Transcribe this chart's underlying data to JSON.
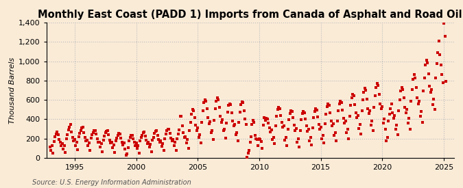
{
  "title": "Monthly East Coast (PADD 1) Imports from Canada of Asphalt and Road Oil",
  "ylabel": "Thousand Barrels",
  "source_text": "Source: U.S. Energy Information Administration",
  "background_color": "#faebd7",
  "plot_bg_color": "#faebd7",
  "marker_color": "#cc0000",
  "marker": "s",
  "markersize": 2.8,
  "ylim": [
    0,
    1400
  ],
  "yticks": [
    0,
    200,
    400,
    600,
    800,
    1000,
    1200,
    1400
  ],
  "xlim_start": 1992.7,
  "xlim_end": 2025.8,
  "xticks": [
    1995,
    2000,
    2005,
    2010,
    2015,
    2020,
    2025
  ],
  "grid_color": "#bbbbbb",
  "grid_style": "-.",
  "title_fontsize": 10.5,
  "label_fontsize": 8,
  "tick_fontsize": 8,
  "source_fontsize": 7,
  "data_points": [
    [
      1993.0,
      110
    ],
    [
      1993.083,
      75
    ],
    [
      1993.167,
      130
    ],
    [
      1993.25,
      50
    ],
    [
      1993.333,
      170
    ],
    [
      1993.417,
      220
    ],
    [
      1993.5,
      250
    ],
    [
      1993.583,
      270
    ],
    [
      1993.667,
      240
    ],
    [
      1993.75,
      190
    ],
    [
      1993.833,
      160
    ],
    [
      1993.917,
      130
    ],
    [
      1994.0,
      145
    ],
    [
      1994.083,
      95
    ],
    [
      1994.167,
      130
    ],
    [
      1994.25,
      60
    ],
    [
      1994.333,
      195
    ],
    [
      1994.417,
      240
    ],
    [
      1994.5,
      290
    ],
    [
      1994.583,
      320
    ],
    [
      1994.667,
      350
    ],
    [
      1994.75,
      270
    ],
    [
      1994.833,
      210
    ],
    [
      1994.917,
      180
    ],
    [
      1995.0,
      190
    ],
    [
      1995.083,
      130
    ],
    [
      1995.167,
      160
    ],
    [
      1995.25,
      85
    ],
    [
      1995.333,
      220
    ],
    [
      1995.417,
      255
    ],
    [
      1995.5,
      285
    ],
    [
      1995.583,
      310
    ],
    [
      1995.667,
      315
    ],
    [
      1995.75,
      265
    ],
    [
      1995.833,
      210
    ],
    [
      1995.917,
      175
    ],
    [
      1996.0,
      185
    ],
    [
      1996.083,
      125
    ],
    [
      1996.167,
      155
    ],
    [
      1996.25,
      75
    ],
    [
      1996.333,
      205
    ],
    [
      1996.417,
      240
    ],
    [
      1996.5,
      265
    ],
    [
      1996.583,
      280
    ],
    [
      1996.667,
      285
    ],
    [
      1996.75,
      245
    ],
    [
      1996.833,
      195
    ],
    [
      1996.917,
      160
    ],
    [
      1997.0,
      165
    ],
    [
      1997.083,
      110
    ],
    [
      1997.167,
      145
    ],
    [
      1997.25,
      65
    ],
    [
      1997.333,
      185
    ],
    [
      1997.417,
      225
    ],
    [
      1997.5,
      260
    ],
    [
      1997.583,
      275
    ],
    [
      1997.667,
      280
    ],
    [
      1997.75,
      240
    ],
    [
      1997.833,
      185
    ],
    [
      1997.917,
      155
    ],
    [
      1998.0,
      160
    ],
    [
      1998.083,
      105
    ],
    [
      1998.167,
      135
    ],
    [
      1998.25,
      55
    ],
    [
      1998.333,
      175
    ],
    [
      1998.417,
      205
    ],
    [
      1998.5,
      235
    ],
    [
      1998.583,
      255
    ],
    [
      1998.667,
      245
    ],
    [
      1998.75,
      205
    ],
    [
      1998.833,
      165
    ],
    [
      1998.917,
      135
    ],
    [
      1999.0,
      155
    ],
    [
      1999.083,
      95
    ],
    [
      1999.167,
      25
    ],
    [
      1999.25,
      40
    ],
    [
      1999.333,
      105
    ],
    [
      1999.417,
      175
    ],
    [
      1999.5,
      210
    ],
    [
      1999.583,
      235
    ],
    [
      1999.667,
      235
    ],
    [
      1999.75,
      195
    ],
    [
      1999.833,
      165
    ],
    [
      1999.917,
      130
    ],
    [
      2000.0,
      155
    ],
    [
      2000.083,
      100
    ],
    [
      2000.167,
      130
    ],
    [
      2000.25,
      50
    ],
    [
      2000.333,
      175
    ],
    [
      2000.417,
      210
    ],
    [
      2000.5,
      235
    ],
    [
      2000.583,
      265
    ],
    [
      2000.667,
      270
    ],
    [
      2000.75,
      225
    ],
    [
      2000.833,
      185
    ],
    [
      2000.917,
      150
    ],
    [
      2001.0,
      165
    ],
    [
      2001.083,
      110
    ],
    [
      2001.167,
      140
    ],
    [
      2001.25,
      65
    ],
    [
      2001.333,
      185
    ],
    [
      2001.417,
      215
    ],
    [
      2001.5,
      255
    ],
    [
      2001.583,
      275
    ],
    [
      2001.667,
      280
    ],
    [
      2001.75,
      235
    ],
    [
      2001.833,
      190
    ],
    [
      2001.917,
      160
    ],
    [
      2002.0,
      175
    ],
    [
      2002.083,
      120
    ],
    [
      2002.167,
      150
    ],
    [
      2002.25,
      75
    ],
    [
      2002.333,
      200
    ],
    [
      2002.417,
      250
    ],
    [
      2002.5,
      280
    ],
    [
      2002.583,
      295
    ],
    [
      2002.667,
      300
    ],
    [
      2002.75,
      255
    ],
    [
      2002.833,
      205
    ],
    [
      2002.917,
      175
    ],
    [
      2003.0,
      190
    ],
    [
      2003.083,
      130
    ],
    [
      2003.167,
      160
    ],
    [
      2003.25,
      80
    ],
    [
      2003.333,
      200
    ],
    [
      2003.417,
      250
    ],
    [
      2003.5,
      290
    ],
    [
      2003.583,
      430
    ],
    [
      2003.667,
      430
    ],
    [
      2003.75,
      330
    ],
    [
      2003.833,
      265
    ],
    [
      2003.917,
      210
    ],
    [
      2004.0,
      220
    ],
    [
      2004.083,
      155
    ],
    [
      2004.167,
      190
    ],
    [
      2004.25,
      100
    ],
    [
      2004.333,
      280
    ],
    [
      2004.417,
      370
    ],
    [
      2004.5,
      455
    ],
    [
      2004.583,
      500
    ],
    [
      2004.667,
      485
    ],
    [
      2004.75,
      415
    ],
    [
      2004.833,
      340
    ],
    [
      2004.917,
      285
    ],
    [
      2005.0,
      310
    ],
    [
      2005.083,
      215
    ],
    [
      2005.167,
      240
    ],
    [
      2005.25,
      155
    ],
    [
      2005.333,
      370
    ],
    [
      2005.417,
      490
    ],
    [
      2005.5,
      570
    ],
    [
      2005.583,
      600
    ],
    [
      2005.667,
      590
    ],
    [
      2005.75,
      510
    ],
    [
      2005.833,
      420
    ],
    [
      2005.917,
      355
    ],
    [
      2006.0,
      375
    ],
    [
      2006.083,
      265
    ],
    [
      2006.167,
      280
    ],
    [
      2006.25,
      190
    ],
    [
      2006.333,
      390
    ],
    [
      2006.417,
      510
    ],
    [
      2006.5,
      590
    ],
    [
      2006.583,
      620
    ],
    [
      2006.667,
      600
    ],
    [
      2006.75,
      520
    ],
    [
      2006.833,
      430
    ],
    [
      2006.917,
      370
    ],
    [
      2007.0,
      395
    ],
    [
      2007.083,
      280
    ],
    [
      2007.167,
      300
    ],
    [
      2007.25,
      205
    ],
    [
      2007.333,
      360
    ],
    [
      2007.417,
      475
    ],
    [
      2007.5,
      545
    ],
    [
      2007.583,
      560
    ],
    [
      2007.667,
      550
    ],
    [
      2007.75,
      470
    ],
    [
      2007.833,
      380
    ],
    [
      2007.917,
      330
    ],
    [
      2008.0,
      350
    ],
    [
      2008.083,
      240
    ],
    [
      2008.167,
      265
    ],
    [
      2008.25,
      175
    ],
    [
      2008.333,
      365
    ],
    [
      2008.417,
      475
    ],
    [
      2008.5,
      555
    ],
    [
      2008.583,
      580
    ],
    [
      2008.667,
      570
    ],
    [
      2008.75,
      490
    ],
    [
      2008.833,
      400
    ],
    [
      2008.917,
      350
    ],
    [
      2009.0,
      10
    ],
    [
      2009.083,
      50
    ],
    [
      2009.167,
      80
    ],
    [
      2009.25,
      160
    ],
    [
      2009.333,
      220
    ],
    [
      2009.417,
      350
    ],
    [
      2009.5,
      390
    ],
    [
      2009.583,
      370
    ],
    [
      2009.667,
      230
    ],
    [
      2009.75,
      200
    ],
    [
      2009.833,
      190
    ],
    [
      2009.917,
      130
    ],
    [
      2010.0,
      200
    ],
    [
      2010.083,
      190
    ],
    [
      2010.167,
      170
    ],
    [
      2010.25,
      100
    ],
    [
      2010.333,
      340
    ],
    [
      2010.417,
      420
    ],
    [
      2010.5,
      390
    ],
    [
      2010.583,
      410
    ],
    [
      2010.667,
      400
    ],
    [
      2010.75,
      360
    ],
    [
      2010.833,
      310
    ],
    [
      2010.917,
      270
    ],
    [
      2011.0,
      290
    ],
    [
      2011.083,
      190
    ],
    [
      2011.167,
      210
    ],
    [
      2011.25,
      145
    ],
    [
      2011.333,
      330
    ],
    [
      2011.417,
      430
    ],
    [
      2011.5,
      500
    ],
    [
      2011.583,
      520
    ],
    [
      2011.667,
      510
    ],
    [
      2011.75,
      440
    ],
    [
      2011.833,
      365
    ],
    [
      2011.917,
      315
    ],
    [
      2012.0,
      335
    ],
    [
      2012.083,
      185
    ],
    [
      2012.167,
      215
    ],
    [
      2012.25,
      130
    ],
    [
      2012.333,
      295
    ],
    [
      2012.417,
      395
    ],
    [
      2012.5,
      460
    ],
    [
      2012.583,
      490
    ],
    [
      2012.667,
      480
    ],
    [
      2012.75,
      415
    ],
    [
      2012.833,
      340
    ],
    [
      2012.917,
      285
    ],
    [
      2013.0,
      305
    ],
    [
      2013.083,
      160
    ],
    [
      2013.167,
      195
    ],
    [
      2013.25,
      115
    ],
    [
      2013.333,
      285
    ],
    [
      2013.417,
      395
    ],
    [
      2013.5,
      460
    ],
    [
      2013.583,
      480
    ],
    [
      2013.667,
      470
    ],
    [
      2013.75,
      405
    ],
    [
      2013.833,
      330
    ],
    [
      2013.917,
      275
    ],
    [
      2014.0,
      295
    ],
    [
      2014.083,
      175
    ],
    [
      2014.167,
      210
    ],
    [
      2014.25,
      135
    ],
    [
      2014.333,
      310
    ],
    [
      2014.417,
      415
    ],
    [
      2014.5,
      480
    ],
    [
      2014.583,
      510
    ],
    [
      2014.667,
      495
    ],
    [
      2014.75,
      425
    ],
    [
      2014.833,
      350
    ],
    [
      2014.917,
      295
    ],
    [
      2015.0,
      315
    ],
    [
      2015.083,
      195
    ],
    [
      2015.167,
      235
    ],
    [
      2015.25,
      155
    ],
    [
      2015.333,
      355
    ],
    [
      2015.417,
      455
    ],
    [
      2015.5,
      530
    ],
    [
      2015.583,
      560
    ],
    [
      2015.667,
      545
    ],
    [
      2015.75,
      465
    ],
    [
      2015.833,
      385
    ],
    [
      2015.917,
      335
    ],
    [
      2016.0,
      355
    ],
    [
      2016.083,
      235
    ],
    [
      2016.167,
      265
    ],
    [
      2016.25,
      175
    ],
    [
      2016.333,
      385
    ],
    [
      2016.417,
      485
    ],
    [
      2016.5,
      560
    ],
    [
      2016.583,
      590
    ],
    [
      2016.667,
      575
    ],
    [
      2016.75,
      495
    ],
    [
      2016.833,
      410
    ],
    [
      2016.917,
      360
    ],
    [
      2017.0,
      385
    ],
    [
      2017.083,
      260
    ],
    [
      2017.167,
      295
    ],
    [
      2017.25,
      195
    ],
    [
      2017.333,
      430
    ],
    [
      2017.417,
      545
    ],
    [
      2017.5,
      625
    ],
    [
      2017.583,
      660
    ],
    [
      2017.667,
      645
    ],
    [
      2017.75,
      555
    ],
    [
      2017.833,
      465
    ],
    [
      2017.917,
      415
    ],
    [
      2018.0,
      440
    ],
    [
      2018.083,
      305
    ],
    [
      2018.167,
      345
    ],
    [
      2018.25,
      245
    ],
    [
      2018.333,
      485
    ],
    [
      2018.417,
      600
    ],
    [
      2018.5,
      680
    ],
    [
      2018.583,
      720
    ],
    [
      2018.667,
      700
    ],
    [
      2018.75,
      610
    ],
    [
      2018.833,
      510
    ],
    [
      2018.917,
      460
    ],
    [
      2019.0,
      490
    ],
    [
      2019.083,
      340
    ],
    [
      2019.167,
      380
    ],
    [
      2019.25,
      280
    ],
    [
      2019.333,
      520
    ],
    [
      2019.417,
      640
    ],
    [
      2019.5,
      730
    ],
    [
      2019.583,
      770
    ],
    [
      2019.667,
      750
    ],
    [
      2019.75,
      660
    ],
    [
      2019.833,
      560
    ],
    [
      2019.917,
      510
    ],
    [
      2020.0,
      530
    ],
    [
      2020.083,
      360
    ],
    [
      2020.167,
      400
    ],
    [
      2020.25,
      300
    ],
    [
      2020.333,
      175
    ],
    [
      2020.417,
      210
    ],
    [
      2020.5,
      385
    ],
    [
      2020.583,
      450
    ],
    [
      2020.667,
      510
    ],
    [
      2020.75,
      560
    ],
    [
      2020.833,
      470
    ],
    [
      2020.917,
      410
    ],
    [
      2021.0,
      440
    ],
    [
      2021.083,
      300
    ],
    [
      2021.167,
      340
    ],
    [
      2021.25,
      240
    ],
    [
      2021.333,
      490
    ],
    [
      2021.417,
      600
    ],
    [
      2021.5,
      690
    ],
    [
      2021.583,
      730
    ],
    [
      2021.667,
      710
    ],
    [
      2021.75,
      620
    ],
    [
      2021.833,
      520
    ],
    [
      2021.917,
      470
    ],
    [
      2022.0,
      500
    ],
    [
      2022.083,
      360
    ],
    [
      2022.167,
      410
    ],
    [
      2022.25,
      300
    ],
    [
      2022.333,
      590
    ],
    [
      2022.417,
      710
    ],
    [
      2022.5,
      810
    ],
    [
      2022.583,
      860
    ],
    [
      2022.667,
      830
    ],
    [
      2022.75,
      730
    ],
    [
      2022.833,
      620
    ],
    [
      2022.917,
      560
    ],
    [
      2023.0,
      590
    ],
    [
      2023.083,
      430
    ],
    [
      2023.167,
      480
    ],
    [
      2023.25,
      370
    ],
    [
      2023.333,
      690
    ],
    [
      2023.417,
      830
    ],
    [
      2023.5,
      960
    ],
    [
      2023.583,
      1010
    ],
    [
      2023.667,
      980
    ],
    [
      2023.75,
      870
    ],
    [
      2023.833,
      740
    ],
    [
      2023.917,
      680
    ],
    [
      2024.0,
      710
    ],
    [
      2024.083,
      555
    ],
    [
      2024.167,
      610
    ],
    [
      2024.25,
      500
    ],
    [
      2024.333,
      830
    ],
    [
      2024.417,
      975
    ],
    [
      2024.5,
      1090
    ],
    [
      2024.583,
      1210
    ],
    [
      2024.667,
      1070
    ],
    [
      2024.75,
      960
    ],
    [
      2024.833,
      860
    ],
    [
      2024.917,
      780
    ],
    [
      2025.0,
      1390
    ],
    [
      2025.083,
      1260
    ],
    [
      2025.167,
      790
    ]
  ]
}
